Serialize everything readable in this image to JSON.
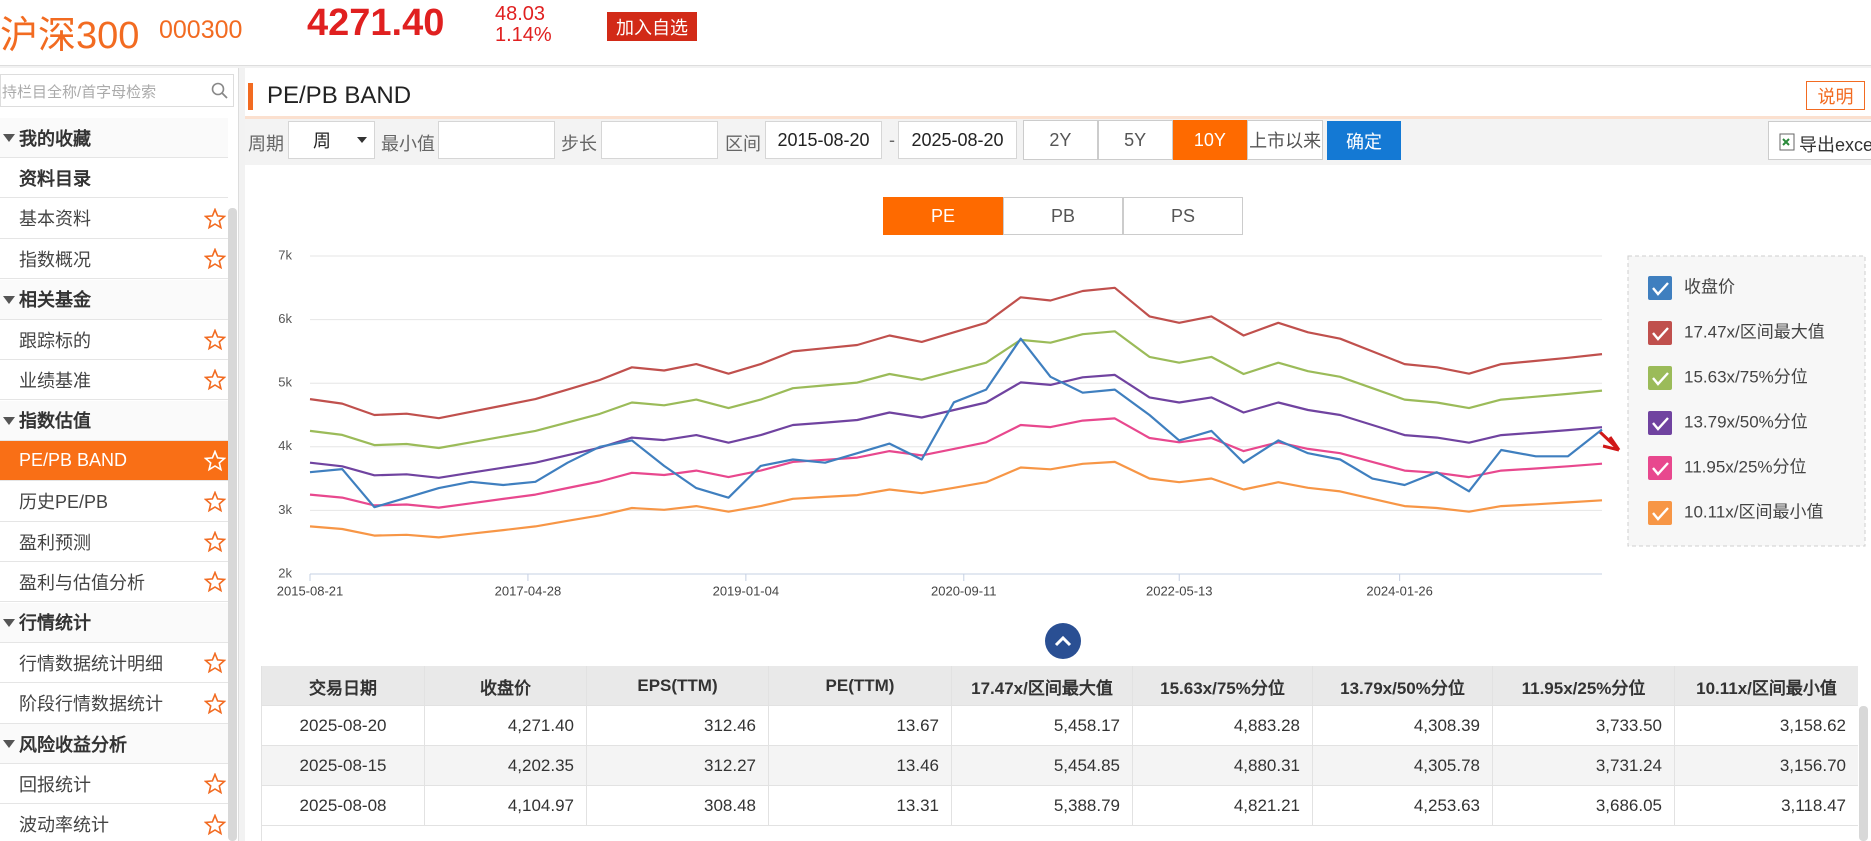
{
  "header": {
    "name": "沪深300",
    "code": "000300",
    "price": "4271.40",
    "change": "48.03",
    "change_pct": "1.14%",
    "add_button": "加入自选"
  },
  "sidebar": {
    "search_placeholder": "支持栏目全称/首字母检索",
    "items": [
      {
        "text": "我的收藏",
        "kind": "group"
      },
      {
        "text": "资料目录",
        "kind": "title"
      },
      {
        "text": "基本资料",
        "kind": "item"
      },
      {
        "text": "指数概况",
        "kind": "item"
      },
      {
        "text": "相关基金",
        "kind": "group"
      },
      {
        "text": "跟踪标的",
        "kind": "item"
      },
      {
        "text": "业绩基准",
        "kind": "item"
      },
      {
        "text": "指数估值",
        "kind": "group"
      },
      {
        "text": "PE/PB BAND",
        "kind": "item",
        "active": true
      },
      {
        "text": "历史PE/PB",
        "kind": "item"
      },
      {
        "text": "盈利预测",
        "kind": "item"
      },
      {
        "text": "盈利与估值分析",
        "kind": "item"
      },
      {
        "text": "行情统计",
        "kind": "group"
      },
      {
        "text": "行情数据统计明细",
        "kind": "item"
      },
      {
        "text": "阶段行情数据统计",
        "kind": "item"
      },
      {
        "text": "风险收益分析",
        "kind": "group"
      },
      {
        "text": "回报统计",
        "kind": "item"
      },
      {
        "text": "波动率统计",
        "kind": "item"
      }
    ]
  },
  "panel": {
    "title": "PE/PB BAND",
    "help": "说明"
  },
  "controls": {
    "period_label": "周期",
    "period": "周",
    "min_label": "最小值",
    "step_label": "步长",
    "range_label": "区间",
    "start": "2015-08-20",
    "separator": "-",
    "end": "2025-08-20",
    "ranges": [
      "2Y",
      "5Y",
      "10Y",
      "上市以来"
    ],
    "active_range": 2,
    "confirm": "确定",
    "export": "导出excel"
  },
  "tabs": {
    "items": [
      "PE",
      "PB",
      "PS"
    ],
    "active": 0
  },
  "chart_data": {
    "type": "line",
    "x": [
      "2015-08-21",
      "2015-11-20",
      "2016-02-19",
      "2016-05-20",
      "2016-08-19",
      "2016-11-18",
      "2017-02-17",
      "2017-05-19",
      "2017-08-18",
      "2017-11-17",
      "2018-02-16",
      "2018-05-18",
      "2018-08-17",
      "2018-11-16",
      "2019-02-15",
      "2019-05-17",
      "2019-08-16",
      "2019-11-15",
      "2020-02-14",
      "2020-05-15",
      "2020-08-14",
      "2020-11-13",
      "2021-02-19",
      "2021-05-14",
      "2021-08-13",
      "2021-11-12",
      "2022-02-18",
      "2022-05-13",
      "2022-08-12",
      "2022-11-11",
      "2023-02-17",
      "2023-05-12",
      "2023-08-11",
      "2023-11-10",
      "2024-02-09",
      "2024-05-10",
      "2024-08-09",
      "2024-11-08",
      "2025-02-14",
      "2025-05-16",
      "2025-08-20"
    ],
    "xlim": [
      "2015-08-21",
      "2025-08-20"
    ],
    "xticks": [
      "2015-08-21",
      "2017-04-28",
      "2019-01-04",
      "2020-09-11",
      "2022-05-13",
      "2024-01-26"
    ],
    "ylim": [
      2000,
      7000
    ],
    "yticks": [
      {
        "value": 2000,
        "label": "2k"
      },
      {
        "value": 3000,
        "label": "3k"
      },
      {
        "value": 4000,
        "label": "4k"
      },
      {
        "value": 5000,
        "label": "5k"
      },
      {
        "value": 6000,
        "label": "6k"
      },
      {
        "value": 7000,
        "label": "7k"
      }
    ],
    "grid": true,
    "legend": "right",
    "series": [
      {
        "name": "收盘价",
        "color": "#3f7fbf",
        "values": [
          3600,
          3650,
          3050,
          3200,
          3350,
          3450,
          3400,
          3450,
          3750,
          4000,
          4100,
          3700,
          3350,
          3200,
          3700,
          3800,
          3750,
          3900,
          4050,
          3800,
          4700,
          4900,
          5700,
          5100,
          4850,
          4900,
          4500,
          4100,
          4250,
          3750,
          4100,
          3900,
          3800,
          3500,
          3400,
          3600,
          3300,
          3950,
          3850,
          3850,
          4271.4
        ]
      },
      {
        "name": "17.47x/区间最大值",
        "color": "#c0504d",
        "values": [
          4750,
          4680,
          4500,
          4520,
          4450,
          4550,
          4650,
          4750,
          4900,
          5050,
          5250,
          5200,
          5300,
          5150,
          5300,
          5500,
          5550,
          5600,
          5750,
          5650,
          5800,
          5950,
          6350,
          6300,
          6450,
          6500,
          6050,
          5950,
          6050,
          5750,
          5950,
          5800,
          5700,
          5500,
          5300,
          5250,
          5150,
          5300,
          5350,
          5400,
          5458.17
        ]
      },
      {
        "name": "15.63x/75%分位",
        "color": "#9bbb59",
        "values": [
          4250,
          4187,
          4026,
          4044,
          3981,
          4071,
          4160,
          4250,
          4384,
          4518,
          4697,
          4652,
          4742,
          4608,
          4742,
          4921,
          4966,
          5010,
          5145,
          5055,
          5189,
          5323,
          5681,
          5637,
          5771,
          5816,
          5413,
          5323,
          5413,
          5145,
          5323,
          5189,
          5100,
          4921,
          4742,
          4697,
          4608,
          4742,
          4787,
          4831,
          4883.28
        ]
      },
      {
        "name": "13.79x/50%分位",
        "color": "#7043a0",
        "values": [
          3750,
          3694,
          3552,
          3568,
          3513,
          3592,
          3671,
          3750,
          3868,
          3986,
          4144,
          4105,
          4184,
          4065,
          4184,
          4342,
          4381,
          4421,
          4539,
          4460,
          4579,
          4697,
          5013,
          4973,
          5092,
          5131,
          4776,
          4697,
          4776,
          4539,
          4697,
          4579,
          4500,
          4342,
          4184,
          4144,
          4065,
          4184,
          4223,
          4263,
          4308.39
        ]
      },
      {
        "name": "11.95x/25%分位",
        "color": "#e8488e",
        "values": [
          3249,
          3201,
          3078,
          3092,
          3044,
          3112,
          3181,
          3249,
          3352,
          3454,
          3591,
          3557,
          3625,
          3523,
          3625,
          3762,
          3796,
          3830,
          3933,
          3865,
          3967,
          4070,
          4343,
          4309,
          4412,
          4446,
          4138,
          4070,
          4138,
          3933,
          4070,
          3967,
          3899,
          3762,
          3625,
          3591,
          3523,
          3625,
          3659,
          3694,
          3733.5
        ]
      },
      {
        "name": "10.11x/区间最小值",
        "color": "#f79646",
        "values": [
          2749,
          2708,
          2604,
          2616,
          2575,
          2633,
          2691,
          2749,
          2836,
          2922,
          3038,
          3009,
          3067,
          2980,
          3067,
          3183,
          3212,
          3241,
          3328,
          3270,
          3356,
          3443,
          3675,
          3646,
          3733,
          3762,
          3501,
          3443,
          3501,
          3328,
          3443,
          3356,
          3299,
          3183,
          3067,
          3038,
          2980,
          3067,
          3096,
          3125,
          3158.62
        ]
      }
    ]
  },
  "table": {
    "columns": [
      "交易日期",
      "收盘价",
      "EPS(TTM)",
      "PE(TTM)",
      "17.47x/区间最大值",
      "15.63x/75%分位",
      "13.79x/50%分位",
      "11.95x/25%分位",
      "10.11x/区间最小值"
    ],
    "rows": [
      [
        "2025-08-20",
        "4,271.40",
        "312.46",
        "13.67",
        "5,458.17",
        "4,883.28",
        "4,308.39",
        "3,733.50",
        "3,158.62"
      ],
      [
        "2025-08-15",
        "4,202.35",
        "312.27",
        "13.46",
        "5,454.85",
        "4,880.31",
        "4,305.78",
        "3,731.24",
        "3,156.70"
      ],
      [
        "2025-08-08",
        "4,104.97",
        "308.48",
        "13.31",
        "5,388.79",
        "4,821.21",
        "4,253.63",
        "3,686.05",
        "3,118.47"
      ]
    ]
  }
}
